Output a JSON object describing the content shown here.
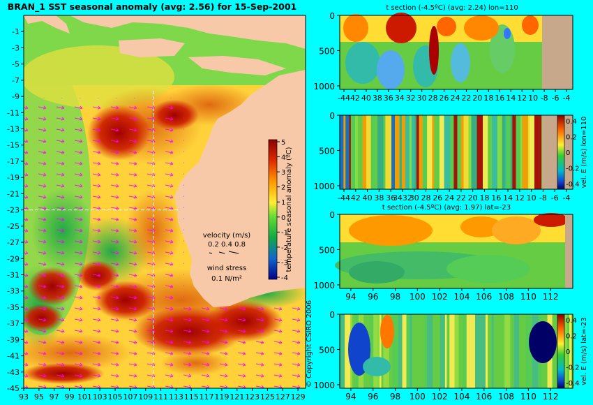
{
  "main_title": "BRAN_1  SST seasonal anomaly (avg: 2.56) for 15-Sep-2001",
  "copyright": "© Copyright CSIRO 2006",
  "colors": {
    "background": "#00ffff",
    "land": "#f7c9a8",
    "deep_land": "#c8a88a",
    "vectors": "#ff00ff",
    "guides": "#ffffff"
  },
  "colorbar_main": {
    "label": "temperature seasonal anomaly (ºC)",
    "ticks": [
      "5",
      "4",
      "3",
      "2",
      "1",
      "0",
      "-1",
      "-2",
      "-3",
      "-4"
    ]
  },
  "legend": {
    "velocity_title": "velocity (m/s)",
    "velocity_scale": "0.2 0.4 0.8",
    "wind_title": "wind stress",
    "wind_scale": "0.1 N/m²"
  },
  "panel_titles": {
    "p1": "t section (-4.5ºC) (avg: 2.24) lon=110",
    "p3": "t section (-4.5ºC) (avg: 1.97) lat=-23"
  },
  "colorbar_vel": {
    "label_p2": "vel. E (m/s) lon=110",
    "label_p4": "vel. E (m/s) lat=-23",
    "ticks": [
      "0.4",
      "0.2",
      "0",
      "-0.2",
      "-0.4"
    ]
  },
  "chart_data": [
    {
      "type": "heatmap",
      "title": "BRAN_1  SST seasonal anomaly (avg: 2.56) for 15-Sep-2001",
      "x_ticks": [
        "93",
        "95",
        "97",
        "99",
        "101",
        "103",
        "105",
        "107",
        "109",
        "111",
        "113",
        "115",
        "117",
        "119",
        "121",
        "123",
        "125",
        "127",
        "129"
      ],
      "y_ticks": [
        "-1",
        "-3",
        "-5",
        "-7",
        "-9",
        "-11",
        "-13",
        "-15",
        "-17",
        "-19",
        "-21",
        "-23",
        "-25",
        "-27",
        "-29",
        "-31",
        "-33",
        "-35",
        "-37",
        "-39",
        "-41",
        "-43",
        "-45"
      ],
      "xlim": [
        93,
        130
      ],
      "ylim": [
        -45,
        1
      ],
      "colorbar_label": "temperature seasonal anomaly (ºC)",
      "colorbar_range": [
        -4,
        5
      ],
      "guide_lon": 110,
      "guide_lat": -23,
      "legend": {
        "velocity": "velocity (m/s) 0.2 0.4 0.8",
        "wind": "wind stress 0.1 N/m²"
      }
    },
    {
      "type": "heatmap",
      "title": "t section (-4.5ºC) (avg: 2.24) lon=110",
      "x_ticks": [
        "-44",
        "42",
        "40",
        "38",
        "36",
        "34",
        "32",
        "30",
        "28",
        "26",
        "24",
        "22",
        "20",
        "18",
        "16",
        "14",
        "12",
        "10",
        "-8",
        "-6",
        "-4"
      ],
      "y_ticks": [
        "0",
        "500",
        "1000"
      ],
      "xlim": [
        -45,
        -3
      ],
      "ylim": [
        1050,
        0
      ]
    },
    {
      "type": "heatmap",
      "title": "",
      "x_ticks": [
        "-44",
        "42",
        "40",
        "38",
        "36",
        "3432",
        "30",
        "28",
        "26",
        "24",
        "22",
        "20",
        "18",
        "16",
        "14",
        "12",
        "10",
        "-8",
        "-6",
        "-4"
      ],
      "y_ticks": [
        "0",
        "500",
        "1000"
      ],
      "colorbar_label": "vel. E (m/s) lon=110",
      "colorbar_ticks": [
        "0.4",
        "0.2",
        "0",
        "-0.2",
        "-0.4"
      ]
    },
    {
      "type": "heatmap",
      "title": "t section (-4.5ºC) (avg: 1.97) lat=-23",
      "x_ticks": [
        "94",
        "96",
        "98",
        "100",
        "102",
        "104",
        "106",
        "108",
        "110",
        "112"
      ],
      "y_ticks": [
        "0",
        "500",
        "1000"
      ],
      "xlim": [
        93,
        114
      ],
      "ylim": [
        1050,
        0
      ]
    },
    {
      "type": "heatmap",
      "title": "",
      "x_ticks": [
        "94",
        "96",
        "98",
        "100",
        "102",
        "104",
        "106",
        "108",
        "110",
        "112"
      ],
      "y_ticks": [
        "0",
        "500",
        "1000"
      ],
      "colorbar_label": "vel. E (m/s) lat=-23",
      "colorbar_ticks": [
        "0.4",
        "0.2",
        "0",
        "-0.2",
        "-0.4"
      ]
    }
  ]
}
